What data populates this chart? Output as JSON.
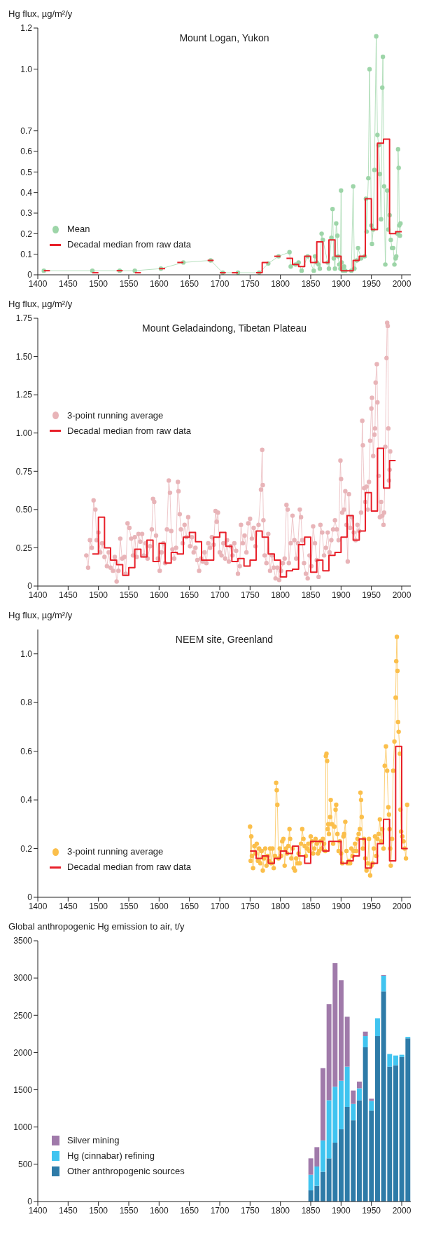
{
  "chart_data": [
    {
      "type": "line",
      "title": "Mount Logan, Yukon",
      "ylabel": "Hg flux, µg/m²/y",
      "xlim": [
        1400,
        2015
      ],
      "xticks": [
        1400,
        1450,
        1500,
        1550,
        1600,
        1650,
        1700,
        1750,
        1800,
        1850,
        1900,
        1950,
        2000
      ],
      "ylim": [
        0,
        1.2
      ],
      "yticks": [
        0,
        0.1,
        0.2,
        0.3,
        0.4,
        0.5,
        0.6,
        0.7,
        {
          "value": 1,
          "label": "1.0"
        },
        1.2
      ],
      "grid": false,
      "legend": "bottom left",
      "series": [
        {
          "name": "Mean",
          "type": "line",
          "marker": "circle",
          "color": "#9dd5a8",
          "x": [
            1410,
            1490,
            1535,
            1560,
            1603,
            1640,
            1685,
            1705,
            1730,
            1765,
            1780,
            1797,
            1815,
            1817,
            1825,
            1830,
            1835,
            1845,
            1855,
            1857,
            1860,
            1863,
            1865,
            1868,
            1870,
            1878,
            1880,
            1884,
            1886,
            1888,
            1890,
            1892,
            1894,
            1895,
            1897,
            1899,
            1900,
            1901,
            1903,
            1905,
            1907,
            1917,
            1920,
            1922,
            1926,
            1928,
            1933,
            1939,
            1941,
            1942,
            1945,
            1947,
            1950,
            1951,
            1953,
            1955,
            1958,
            1960,
            1962,
            1964,
            1966,
            1968,
            1969,
            1971,
            1973,
            1976,
            1978,
            1980,
            1982,
            1984,
            1986,
            1988,
            1990,
            1991,
            1993,
            1994,
            1995,
            1996,
            1997,
            1998
          ],
          "values": [
            0.02,
            0.02,
            0.02,
            0.02,
            0.03,
            0.06,
            0.07,
            0.01,
            0.01,
            0.01,
            0.055,
            0.09,
            0.11,
            0.04,
            0.05,
            0.06,
            0.02,
            0.09,
            0.02,
            0.09,
            0.06,
            0.05,
            0.03,
            0.2,
            0.17,
            0.06,
            0.03,
            0.18,
            0.32,
            0.08,
            0.03,
            0.25,
            0.19,
            0.09,
            0.05,
            0.03,
            0.41,
            0.06,
            0.02,
            0.04,
            0.02,
            0.02,
            0.43,
            0.03,
            0.07,
            0.13,
            0.08,
            0.09,
            0.37,
            0.21,
            0.47,
            1.0,
            0.24,
            0.15,
            0.22,
            0.51,
            1.16,
            0.68,
            0.63,
            0.49,
            0.27,
            0.91,
            1.06,
            0.43,
            0.05,
            0.41,
            0.22,
            0.29,
            0.17,
            0.13,
            0.13,
            0.05,
            0.08,
            0.09,
            0.2,
            0.61,
            0.52,
            0.24,
            0.19,
            0.25
          ]
        },
        {
          "name": "Decadal median from raw data",
          "type": "step",
          "color": "#e8202a",
          "x": [
            1810,
            1820,
            1830,
            1840,
            1850,
            1860,
            1870,
            1880,
            1890,
            1900,
            1910,
            1920,
            1930,
            1940,
            1950,
            1960,
            1970,
            1980,
            1990,
            2000
          ],
          "values": [
            0.08,
            0.05,
            0.04,
            0.09,
            0.06,
            0.16,
            0.06,
            0.17,
            0.09,
            0.02,
            0.02,
            0.07,
            0.09,
            0.37,
            0.22,
            0.64,
            0.66,
            0.2,
            0.21,
            0.21
          ]
        },
        {
          "type": "step",
          "color": "#e8202a",
          "x": [
            1410,
            1420
          ],
          "values": [
            0.02,
            0.02
          ]
        },
        {
          "type": "step",
          "color": "#e8202a",
          "x": [
            1490,
            1500
          ],
          "values": [
            0.01,
            0.01
          ]
        },
        {
          "type": "step",
          "color": "#e8202a",
          "x": [
            1530,
            1540
          ],
          "values": [
            0.02,
            0.02
          ]
        },
        {
          "type": "step",
          "color": "#e8202a",
          "x": [
            1560,
            1570
          ],
          "values": [
            0.01,
            0.01
          ]
        },
        {
          "type": "step",
          "color": "#e8202a",
          "x": [
            1600,
            1610
          ],
          "values": [
            0.03,
            0.03
          ]
        },
        {
          "type": "step",
          "color": "#e8202a",
          "x": [
            1630,
            1640
          ],
          "values": [
            0.06,
            0.06
          ]
        },
        {
          "type": "step",
          "color": "#e8202a",
          "x": [
            1680,
            1690
          ],
          "values": [
            0.07,
            0.07
          ]
        },
        {
          "type": "step",
          "color": "#e8202a",
          "x": [
            1700,
            1710
          ],
          "values": [
            0.01,
            0.01
          ]
        },
        {
          "type": "step",
          "color": "#e8202a",
          "x": [
            1720,
            1730
          ],
          "values": [
            0.01,
            0.01
          ]
        },
        {
          "type": "step",
          "color": "#e8202a",
          "x": [
            1760,
            1770,
            1780
          ],
          "values": [
            0.01,
            0.06,
            0.06
          ]
        },
        {
          "type": "step",
          "color": "#e8202a",
          "x": [
            1790,
            1800
          ],
          "values": [
            0.09,
            0.09
          ]
        }
      ]
    },
    {
      "type": "line",
      "title": "Mount Geladaindong, Tibetan Plateau",
      "ylabel": "Hg flux, µg/m²/y",
      "xlim": [
        1400,
        2015
      ],
      "xticks": [
        1400,
        1450,
        1500,
        1550,
        1600,
        1650,
        1700,
        1750,
        1800,
        1850,
        1900,
        1950,
        2000
      ],
      "ylim": [
        0,
        1.75
      ],
      "yticks": [
        0,
        0.25,
        {
          "value": 0.5,
          "label": "0.50"
        },
        0.75,
        {
          "value": 1,
          "label": "1.00"
        },
        1.25,
        {
          "value": 1.5,
          "label": "1.50"
        },
        1.75
      ],
      "grid": false,
      "legend": "left",
      "series": [
        {
          "name": "3-point running average",
          "type": "line",
          "marker": "circle",
          "color": "#e8b4b8",
          "x": [
            1480,
            1483,
            1486,
            1489,
            1492,
            1495,
            1497,
            1500,
            1503,
            1506,
            1510,
            1514,
            1517,
            1520,
            1524,
            1527,
            1530,
            1533,
            1536,
            1539,
            1543,
            1545,
            1548,
            1551,
            1554,
            1557,
            1560,
            1563,
            1566,
            1569,
            1572,
            1575,
            1578,
            1581,
            1585,
            1588,
            1590,
            1592,
            1595,
            1598,
            1601,
            1604,
            1607,
            1610,
            1613,
            1616,
            1618,
            1620,
            1622,
            1625,
            1628,
            1631,
            1632,
            1634,
            1636,
            1639,
            1642,
            1645,
            1648,
            1651,
            1654,
            1657,
            1660,
            1663,
            1666,
            1669,
            1672,
            1675,
            1678,
            1681,
            1684,
            1687,
            1690,
            1693,
            1695,
            1697,
            1700,
            1703,
            1706,
            1709,
            1712,
            1715,
            1718,
            1721,
            1724,
            1727,
            1730,
            1733,
            1735,
            1738,
            1741,
            1744,
            1747,
            1750,
            1753,
            1756,
            1759,
            1764,
            1768,
            1770,
            1771,
            1772,
            1774,
            1777,
            1780,
            1783,
            1786,
            1789,
            1792,
            1795,
            1798,
            1801,
            1804,
            1807,
            1810,
            1812,
            1814,
            1817,
            1820,
            1823,
            1826,
            1829,
            1832,
            1834,
            1836,
            1839,
            1842,
            1845,
            1848,
            1851,
            1854,
            1857,
            1860,
            1863,
            1866,
            1869,
            1872,
            1875,
            1878,
            1881,
            1884,
            1887,
            1890,
            1893,
            1896,
            1899,
            1900,
            1902,
            1905,
            1907,
            1909,
            1911,
            1913,
            1915,
            1918,
            1921,
            1924,
            1927,
            1930,
            1933,
            1935,
            1936,
            1938,
            1940,
            1942,
            1944,
            1946,
            1948,
            1950,
            1951,
            1953,
            1955,
            1956,
            1957,
            1959,
            1960,
            1962,
            1964,
            1966,
            1968,
            1970,
            1971,
            1973,
            1975,
            1976,
            1977,
            1978,
            1979,
            1980,
            1981
          ],
          "values": [
            0.2,
            0.12,
            0.3,
            0.25,
            0.56,
            0.5,
            0.3,
            0.35,
            0.22,
            0.28,
            0.19,
            0.13,
            0.22,
            0.12,
            0.1,
            0.19,
            0.03,
            0.1,
            0.31,
            0.18,
            0.19,
            0.08,
            0.41,
            0.38,
            0.31,
            0.2,
            0.32,
            0.19,
            0.34,
            0.29,
            0.34,
            0.2,
            0.28,
            0.18,
            0.26,
            0.37,
            0.57,
            0.55,
            0.33,
            0.18,
            0.1,
            0.22,
            0.28,
            0.15,
            0.37,
            0.69,
            0.61,
            0.36,
            0.24,
            0.18,
            0.25,
            0.68,
            0.62,
            0.47,
            0.37,
            0.28,
            0.4,
            0.32,
            0.45,
            0.26,
            0.32,
            0.22,
            0.25,
            0.17,
            0.1,
            0.18,
            0.16,
            0.22,
            0.15,
            0.28,
            0.25,
            0.32,
            0.27,
            0.49,
            0.42,
            0.48,
            0.22,
            0.2,
            0.28,
            0.18,
            0.3,
            0.16,
            0.26,
            0.2,
            0.28,
            0.23,
            0.08,
            0.13,
            0.4,
            0.28,
            0.33,
            0.22,
            0.41,
            0.44,
            0.31,
            0.38,
            0.26,
            0.4,
            0.63,
            0.89,
            0.66,
            0.43,
            0.2,
            0.15,
            0.34,
            0.1,
            0.2,
            0.12,
            0.05,
            0.12,
            0.04,
            0.1,
            0.15,
            0.18,
            0.53,
            0.5,
            0.15,
            0.28,
            0.46,
            0.3,
            0.18,
            0.28,
            0.5,
            0.45,
            0.3,
            0.15,
            0.08,
            0.05,
            0.2,
            0.13,
            0.39,
            0.28,
            0.17,
            0.06,
            0.4,
            0.35,
            0.2,
            0.25,
            0.35,
            0.22,
            0.3,
            0.37,
            0.43,
            0.37,
            0.3,
            0.82,
            0.7,
            0.48,
            0.5,
            0.62,
            0.4,
            0.16,
            0.6,
            0.38,
            0.45,
            0.35,
            0.3,
            0.4,
            0.36,
            0.48,
            1.08,
            0.92,
            0.64,
            0.55,
            0.65,
            0.5,
            0.68,
            0.95,
            1.16,
            1.23,
            0.85,
            0.99,
            1.03,
            1.33,
            1.45,
            1.2,
            0.72,
            0.45,
            0.55,
            0.46,
            0.4,
            0.48,
            0.91,
            1.49,
            1.72,
            1.7,
            1.03,
            0.69,
            0.76,
            0.88
          ]
        },
        {
          "name": "Decadal median from raw data",
          "type": "step",
          "color": "#e8202a",
          "x": [
            1490,
            1500,
            1510,
            1520,
            1530,
            1540,
            1550,
            1560,
            1570,
            1580,
            1590,
            1600,
            1610,
            1620,
            1630,
            1640,
            1650,
            1660,
            1670,
            1680,
            1690,
            1700,
            1710,
            1720,
            1730,
            1740,
            1750,
            1760,
            1770,
            1780,
            1790,
            1800,
            1810,
            1820,
            1830,
            1840,
            1850,
            1860,
            1870,
            1880,
            1890,
            1900,
            1910,
            1920,
            1930,
            1940,
            1950,
            1960,
            1970,
            1980,
            1990
          ],
          "values": [
            0.21,
            0.45,
            0.25,
            0.17,
            0.14,
            0.07,
            0.12,
            0.24,
            0.19,
            0.3,
            0.16,
            0.28,
            0.15,
            0.22,
            0.21,
            0.32,
            0.35,
            0.29,
            0.17,
            0.17,
            0.32,
            0.35,
            0.26,
            0.16,
            0.18,
            0.13,
            0.17,
            0.36,
            0.32,
            0.21,
            0.17,
            0.06,
            0.1,
            0.11,
            0.27,
            0.32,
            0.09,
            0.17,
            0.1,
            0.2,
            0.22,
            0.32,
            0.46,
            0.3,
            0.36,
            0.61,
            0.49,
            0.9,
            0.64,
            0.82,
            0.82
          ]
        }
      ]
    },
    {
      "type": "line",
      "title": "NEEM site, Greenland",
      "ylabel": "Hg flux, µg/m²/y",
      "xlim": [
        1400,
        2015
      ],
      "xticks": [
        1400,
        1450,
        1500,
        1550,
        1600,
        1650,
        1700,
        1750,
        1800,
        1850,
        1900,
        1950,
        2000
      ],
      "ylim": [
        0,
        1.1
      ],
      "yticks": [
        0,
        0.2,
        0.4,
        0.6,
        0.8,
        {
          "value": 1,
          "label": "1.0"
        }
      ],
      "grid": false,
      "legend": "bottom left",
      "series": [
        {
          "name": "3-point running average",
          "type": "line",
          "marker": "circle",
          "color": "#fbbf4b",
          "x": [
            1750,
            1751,
            1752,
            1753,
            1755,
            1757,
            1759,
            1761,
            1763,
            1765,
            1767,
            1769,
            1771,
            1773,
            1775,
            1777,
            1779,
            1781,
            1783,
            1785,
            1787,
            1789,
            1791,
            1793,
            1794,
            1795,
            1797,
            1799,
            1801,
            1803,
            1805,
            1807,
            1809,
            1811,
            1813,
            1815,
            1816,
            1818,
            1820,
            1822,
            1824,
            1826,
            1828,
            1830,
            1832,
            1834,
            1836,
            1838,
            1840,
            1842,
            1844,
            1846,
            1848,
            1850,
            1852,
            1854,
            1856,
            1858,
            1860,
            1862,
            1864,
            1866,
            1868,
            1870,
            1872,
            1874,
            1875,
            1876,
            1877,
            1878,
            1879,
            1880,
            1882,
            1883,
            1885,
            1887,
            1889,
            1891,
            1892,
            1894,
            1896,
            1898,
            1900,
            1902,
            1904,
            1905,
            1907,
            1909,
            1911,
            1913,
            1915,
            1917,
            1919,
            1921,
            1923,
            1925,
            1927,
            1929,
            1931,
            1932,
            1933,
            1934,
            1936,
            1938,
            1940,
            1942,
            1944,
            1946,
            1948,
            1950,
            1952,
            1954,
            1956,
            1958,
            1960,
            1962,
            1964,
            1966,
            1968,
            1970,
            1972,
            1974,
            1976,
            1978,
            1979,
            1980,
            1981,
            1982,
            1984,
            1986,
            1988,
            1990,
            1991,
            1992,
            1993,
            1994,
            1995,
            1997,
            1998,
            1999,
            2001,
            2003,
            2005,
            2007,
            2009
          ],
          "values": [
            0.29,
            0.15,
            0.25,
            0.17,
            0.12,
            0.21,
            0.18,
            0.22,
            0.15,
            0.2,
            0.14,
            0.19,
            0.11,
            0.16,
            0.2,
            0.13,
            0.17,
            0.15,
            0.2,
            0.14,
            0.2,
            0.12,
            0.17,
            0.47,
            0.44,
            0.38,
            0.16,
            0.2,
            0.17,
            0.23,
            0.24,
            0.13,
            0.2,
            0.18,
            0.21,
            0.28,
            0.24,
            0.16,
            0.2,
            0.12,
            0.11,
            0.16,
            0.14,
            0.18,
            0.14,
            0.22,
            0.28,
            0.24,
            0.21,
            0.17,
            0.2,
            0.22,
            0.19,
            0.25,
            0.23,
            0.18,
            0.2,
            0.24,
            0.22,
            0.18,
            0.19,
            0.23,
            0.2,
            0.24,
            0.22,
            0.19,
            0.58,
            0.59,
            0.56,
            0.28,
            0.3,
            0.26,
            0.33,
            0.4,
            0.3,
            0.22,
            0.29,
            0.36,
            0.38,
            0.26,
            0.19,
            0.23,
            0.18,
            0.14,
            0.25,
            0.26,
            0.31,
            0.19,
            0.14,
            0.15,
            0.14,
            0.2,
            0.17,
            0.19,
            0.22,
            0.19,
            0.24,
            0.26,
            0.28,
            0.43,
            0.4,
            0.33,
            0.2,
            0.24,
            0.16,
            0.11,
            0.14,
            0.24,
            0.09,
            0.13,
            0.14,
            0.2,
            0.25,
            0.17,
            0.24,
            0.26,
            0.32,
            0.23,
            0.28,
            0.2,
            0.54,
            0.62,
            0.52,
            0.37,
            0.34,
            0.28,
            0.2,
            0.13,
            0.24,
            0.52,
            0.64,
            0.82,
            0.97,
            1.07,
            0.93,
            0.72,
            0.68,
            0.59,
            0.36,
            0.27,
            0.25,
            0.23,
            0.2,
            0.16,
            0.38
          ]
        },
        {
          "name": "Decadal median from raw data",
          "type": "step",
          "color": "#e8202a",
          "x": [
            1750,
            1760,
            1770,
            1780,
            1790,
            1800,
            1810,
            1820,
            1830,
            1840,
            1850,
            1860,
            1870,
            1880,
            1890,
            1900,
            1910,
            1920,
            1930,
            1940,
            1950,
            1960,
            1970,
            1980,
            1990,
            2000,
            2010
          ],
          "values": [
            0.19,
            0.16,
            0.17,
            0.14,
            0.16,
            0.19,
            0.18,
            0.21,
            0.17,
            0.14,
            0.23,
            0.23,
            0.19,
            0.23,
            0.23,
            0.14,
            0.15,
            0.17,
            0.24,
            0.12,
            0.14,
            0.22,
            0.32,
            0.15,
            0.62,
            0.2,
            0.2
          ]
        }
      ]
    },
    {
      "type": "bar",
      "stacked": true,
      "ylabel": "Global anthropogenic Hg emission to air, t/y",
      "x": [
        1850,
        1860,
        1870,
        1880,
        1890,
        1900,
        1910,
        1920,
        1930,
        1940,
        1950,
        1960,
        1970,
        1980,
        1990,
        2000,
        2010
      ],
      "xlim": [
        1400,
        2015
      ],
      "xticks": [
        1400,
        1450,
        1500,
        1550,
        1600,
        1650,
        1700,
        1750,
        1800,
        1850,
        1900,
        1950,
        2000
      ],
      "ylim": [
        0,
        3500
      ],
      "yticks": [
        0,
        500,
        1000,
        1500,
        2000,
        2500,
        3000,
        3500
      ],
      "grid": false,
      "legend": "bottom left",
      "series": [
        {
          "name": "Other anthropogenic sources",
          "color": "#2e7ba8",
          "values": [
            150,
            210,
            400,
            580,
            790,
            970,
            1270,
            1090,
            1360,
            2070,
            1220,
            2220,
            2820,
            1810,
            1830,
            1940,
            2190
          ]
        },
        {
          "name": "Hg (cinnabar) refining",
          "color": "#40c4f0",
          "values": [
            210,
            260,
            420,
            780,
            750,
            650,
            540,
            220,
            160,
            150,
            130,
            240,
            210,
            170,
            130,
            30,
            20
          ]
        },
        {
          "name": "Silver mining",
          "color": "#a07aaa",
          "values": [
            220,
            260,
            970,
            1290,
            1660,
            1350,
            670,
            180,
            90,
            60,
            30,
            0,
            10,
            0,
            0,
            0,
            0
          ]
        }
      ]
    }
  ]
}
